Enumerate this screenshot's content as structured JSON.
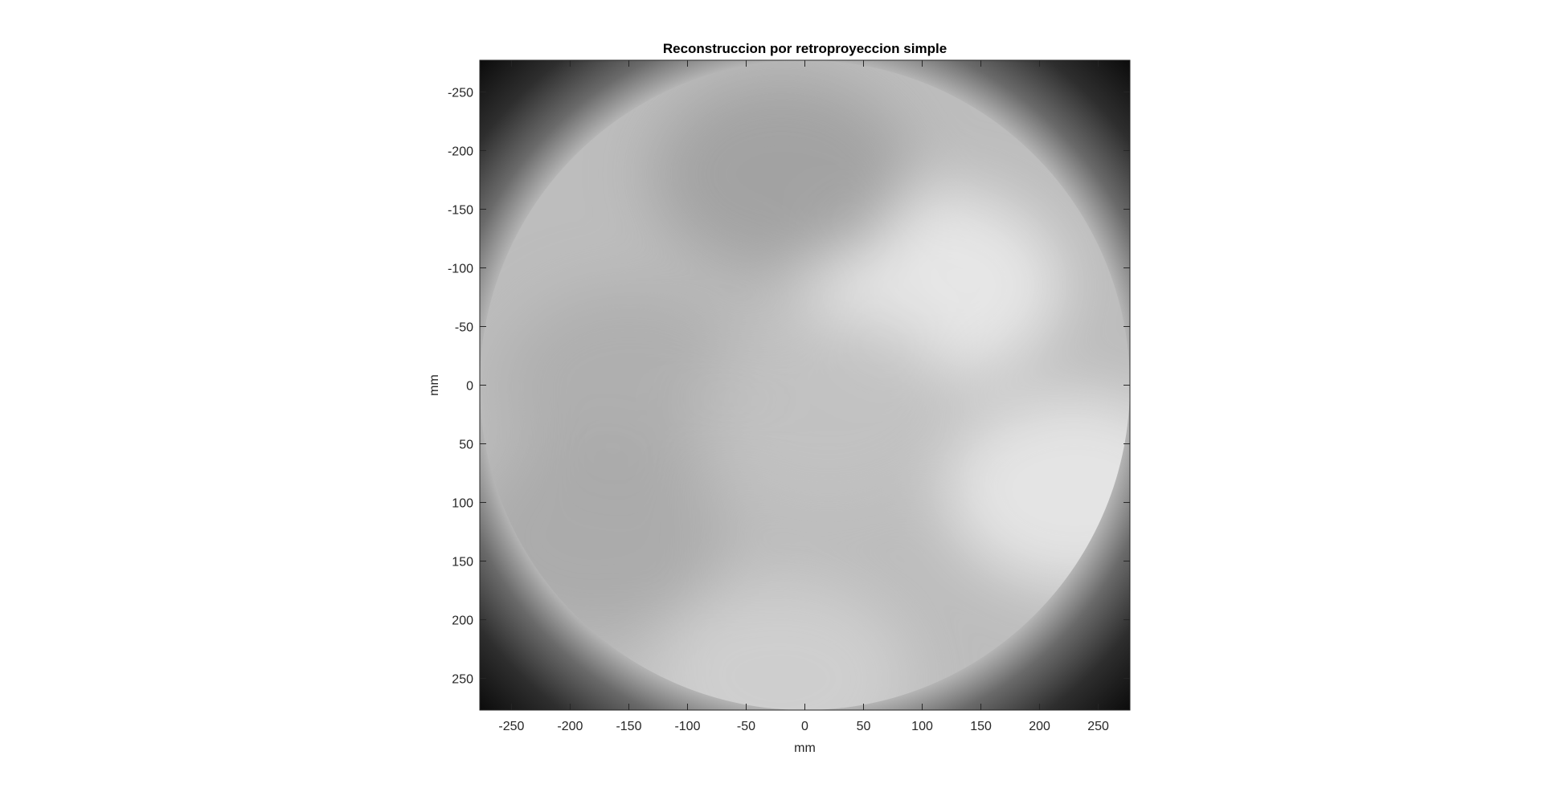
{
  "chart_data": {
    "type": "heatmap",
    "title": "Reconstruccion por retroproyeccion simple",
    "xlabel": "mm",
    "ylabel": "mm",
    "xlim": [
      -277,
      277
    ],
    "ylim": [
      -277,
      277
    ],
    "y_axis_direction": "reversed",
    "colormap": "gray",
    "x_ticks": [
      -250,
      -200,
      -150,
      -100,
      -50,
      0,
      50,
      100,
      150,
      200,
      250
    ],
    "y_ticks": [
      -250,
      -200,
      -150,
      -100,
      -50,
      0,
      50,
      100,
      150,
      200,
      250
    ],
    "grid": false,
    "legend": "none",
    "disk_radius_mm": 277,
    "features": [
      {
        "name": "bright lobe upper-right",
        "x": 110,
        "y": -85,
        "level": 0.93
      },
      {
        "name": "bright region right",
        "x": 230,
        "y": 90,
        "level": 0.92
      },
      {
        "name": "darker lobe top-center",
        "x": -20,
        "y": -180,
        "level": 0.62
      },
      {
        "name": "darker region left",
        "x": -150,
        "y": 0,
        "level": 0.68
      },
      {
        "name": "darker region bottom-left",
        "x": -180,
        "y": 130,
        "level": 0.66
      },
      {
        "name": "light region bottom",
        "x": -20,
        "y": 250,
        "level": 0.82
      },
      {
        "name": "medium region center",
        "x": 20,
        "y": 20,
        "level": 0.76
      }
    ],
    "colors": {
      "background": "#ffffff",
      "axes_line": "#262626",
      "title": "#000000",
      "dark_corner": "#0a0a0a"
    }
  }
}
